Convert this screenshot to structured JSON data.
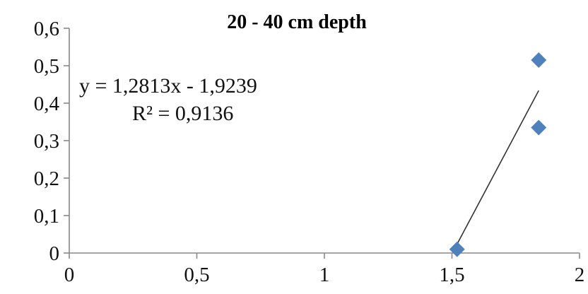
{
  "chart_data": {
    "type": "scatter",
    "title": "20 - 40 cm depth",
    "xlabel": "",
    "ylabel": "",
    "xlim": [
      0,
      2
    ],
    "ylim": [
      0,
      0.6
    ],
    "x_ticks": [
      "0",
      "0,5",
      "1",
      "1,5",
      "2"
    ],
    "y_ticks": [
      "0",
      "0,1",
      "0,2",
      "0,3",
      "0,4",
      "0,5",
      "0,6"
    ],
    "grid": false,
    "legend": "none",
    "marker_color": "#4F81BD",
    "trendline_color": "#333333",
    "series": [
      {
        "marker": "diamond",
        "points": [
          {
            "x": 1.52,
            "y": 0.01
          },
          {
            "x": 1.84,
            "y": 0.335
          },
          {
            "x": 1.84,
            "y": 0.515
          }
        ]
      }
    ],
    "trendline": {
      "slope": 1.2813,
      "intercept": -1.9239,
      "x_range": [
        1.52,
        1.84
      ],
      "equation": "y = 1,2813x  - 1,9239",
      "r_squared": "R² = 0,9136"
    }
  }
}
